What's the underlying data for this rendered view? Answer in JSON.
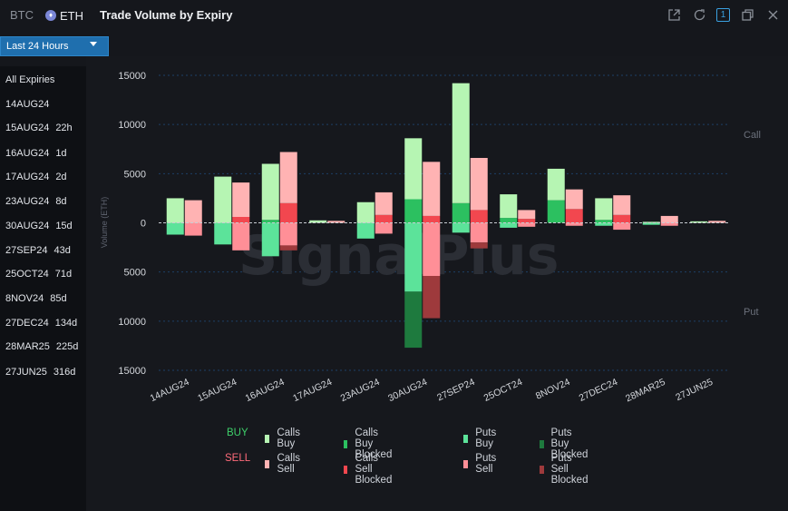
{
  "header": {
    "coin_inactive": "BTC",
    "coin_active": "ETH",
    "coin_active_badge": "♦",
    "title": "Trade Volume by Expiry",
    "icons": [
      "external-link-icon",
      "refresh-icon",
      "layout-one-icon",
      "restore-window-icon",
      "close-icon"
    ],
    "layout_badge": "1"
  },
  "range": {
    "label": "Last 24 Hours"
  },
  "sidebar": {
    "items": [
      {
        "label": "All Expiries",
        "dte": ""
      },
      {
        "label": "14AUG24",
        "dte": ""
      },
      {
        "label": "15AUG24",
        "dte": "22h"
      },
      {
        "label": "16AUG24",
        "dte": "1d"
      },
      {
        "label": "17AUG24",
        "dte": "2d"
      },
      {
        "label": "23AUG24",
        "dte": "8d"
      },
      {
        "label": "30AUG24",
        "dte": "15d"
      },
      {
        "label": "27SEP24",
        "dte": "43d"
      },
      {
        "label": "25OCT24",
        "dte": "71d"
      },
      {
        "label": "8NOV24",
        "dte": "85d"
      },
      {
        "label": "27DEC24",
        "dte": "134d"
      },
      {
        "label": "28MAR25",
        "dte": "225d"
      },
      {
        "label": "27JUN25",
        "dte": "316d"
      }
    ]
  },
  "watermark": "SignalPlus",
  "colors": {
    "calls_buy": "#b6f5b3",
    "calls_buy_blocked": "#2cc060",
    "puts_buy": "#5ce39a",
    "puts_buy_blocked": "#1e7a3e",
    "calls_sell": "#ffb3b3",
    "calls_sell_blocked": "#f2474f",
    "puts_sell": "#ff8f97",
    "puts_sell_blocked": "#9e3a3c",
    "buy_label": "#3ecf6a",
    "sell_label": "#ff6b7a"
  },
  "chart_data": {
    "type": "bar",
    "ylabel": "Volume (ETH)",
    "ylim": [
      -15000,
      15000
    ],
    "yticks": [
      15000,
      10000,
      5000,
      0,
      -5000,
      -10000,
      -15000
    ],
    "ytick_labels": [
      "15000",
      "10000",
      "5000",
      "0",
      "5000",
      "10000",
      "15000"
    ],
    "side_labels": {
      "top": "Call",
      "bottom": "Put"
    },
    "categories": [
      "14AUG24",
      "15AUG24",
      "16AUG24",
      "17AUG24",
      "23AUG24",
      "30AUG24",
      "27SEP24",
      "25OCT24",
      "8NOV24",
      "27DEC24",
      "28MAR25",
      "27JUN25"
    ],
    "buy": {
      "calls_buy": [
        2500,
        4700,
        5700,
        250,
        2100,
        6200,
        12200,
        2400,
        3200,
        2200,
        100,
        150
      ],
      "calls_buy_blocked": [
        0,
        0,
        300,
        0,
        0,
        2400,
        2000,
        500,
        2300,
        300,
        0,
        0
      ],
      "puts_buy": [
        -1200,
        -2200,
        -3400,
        0,
        -1600,
        -7000,
        -1000,
        -500,
        0,
        -300,
        -200,
        0
      ],
      "puts_buy_blocked": [
        0,
        0,
        0,
        0,
        0,
        -5700,
        0,
        0,
        0,
        0,
        0,
        0
      ]
    },
    "sell": {
      "calls_sell": [
        2300,
        3500,
        5200,
        200,
        2300,
        5500,
        5300,
        900,
        2000,
        2000,
        700,
        200
      ],
      "calls_sell_blocked": [
        0,
        600,
        2000,
        0,
        800,
        700,
        1300,
        400,
        1400,
        800,
        0,
        0
      ],
      "puts_sell": [
        -1300,
        -2800,
        -2300,
        0,
        -1100,
        -5400,
        -2000,
        -400,
        -300,
        -700,
        -300,
        0
      ],
      "puts_sell_blocked": [
        0,
        0,
        -500,
        0,
        0,
        -4300,
        -600,
        0,
        0,
        0,
        0,
        0
      ]
    },
    "legend": {
      "buy_label": "BUY",
      "sell_label": "SELL",
      "buy_items": [
        "Calls Buy",
        "Calls Buy Blocked",
        "Puts Buy",
        "Puts Buy Blocked"
      ],
      "sell_items": [
        "Calls Sell",
        "Calls Sell Blocked",
        "Puts Sell",
        "Puts Sell Blocked"
      ]
    }
  }
}
